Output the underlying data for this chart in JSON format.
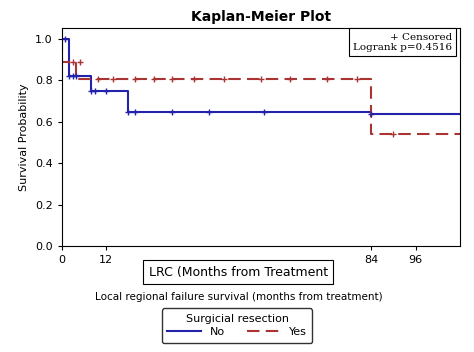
{
  "title": "Kaplan-Meier Plot",
  "xlabel_main": "LRC (Months from Treatment",
  "xlabel_sub": "Local regional failure survival (months from treatment)",
  "ylabel": "Survival Probability",
  "legend_title": "Surgicial resection",
  "legend_no": "No",
  "legend_yes": "Yes",
  "logrank_text": "+ Censored\nLogrank p=0.4516",
  "xlim": [
    0,
    108
  ],
  "ylim": [
    0.0,
    1.05
  ],
  "yticks": [
    0.0,
    0.2,
    0.4,
    0.6,
    0.8,
    1.0
  ],
  "xticks": [
    0,
    12,
    84,
    96
  ],
  "color_no": "#2222AA",
  "color_yes": "#AA3333",
  "blue_step_x": [
    0,
    0,
    2,
    8,
    8,
    18,
    18,
    30,
    30,
    84,
    84,
    108
  ],
  "blue_step_y": [
    1.0,
    1.0,
    0.818,
    0.818,
    0.75,
    0.75,
    0.648,
    0.648,
    0.648,
    0.648,
    0.636,
    0.636
  ],
  "blue_censor_x": [
    1,
    2,
    3,
    4,
    8,
    9,
    12,
    18,
    20,
    30,
    40,
    55,
    84
  ],
  "blue_censor_y": [
    1.0,
    0.818,
    0.818,
    0.818,
    0.75,
    0.75,
    0.75,
    0.648,
    0.648,
    0.648,
    0.648,
    0.648,
    0.636
  ],
  "red_step_x": [
    0,
    0,
    4,
    4,
    10,
    10,
    84,
    84,
    108
  ],
  "red_step_y": [
    1.0,
    0.885,
    0.885,
    0.806,
    0.806,
    0.806,
    0.806,
    0.541,
    0.541
  ],
  "red_censor_x": [
    3,
    5,
    10,
    14,
    20,
    25,
    30,
    36,
    44,
    54,
    62,
    72,
    80,
    90
  ],
  "red_censor_y": [
    0.885,
    0.885,
    0.806,
    0.806,
    0.806,
    0.806,
    0.806,
    0.806,
    0.806,
    0.806,
    0.806,
    0.806,
    0.806,
    0.541
  ],
  "bg_color": "#f0f0f0"
}
